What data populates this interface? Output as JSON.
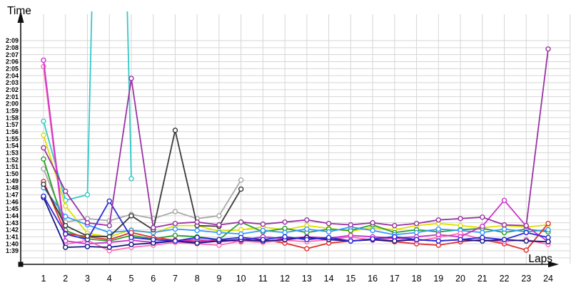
{
  "chart_data": {
    "type": "line",
    "title": "",
    "xlabel": "Laps",
    "ylabel": "Time",
    "y_axis_format": "m:ss",
    "value_unit": "seconds",
    "y_range_labels": [
      "1:39",
      "2:09"
    ],
    "grid": true,
    "legend": false,
    "x_ticks": [
      "1",
      "2",
      "3",
      "4",
      "5",
      "6",
      "7",
      "8",
      "9",
      "10",
      "11",
      "12",
      "13",
      "14",
      "15",
      "16",
      "17",
      "18",
      "19",
      "20",
      "21",
      "22",
      "23",
      "24"
    ],
    "y_ticks": [
      "2:09",
      "2:08",
      "2:07",
      "2:06",
      "2:05",
      "2:04",
      "2:03",
      "2:02",
      "2:01",
      "2:00",
      "1:59",
      "1:58",
      "1:57",
      "1:56",
      "1:55",
      "1:54",
      "1:53",
      "1:52",
      "1:51",
      "1:50",
      "1:49",
      "1:48",
      "1:47",
      "1:46",
      "1:45",
      "1:44",
      "1:43",
      "1:42",
      "1:41",
      "1:40",
      "1:39"
    ],
    "x": [
      1,
      2,
      3,
      4,
      5,
      6,
      7,
      8,
      9,
      10,
      11,
      12,
      13,
      14,
      15,
      16,
      17,
      18,
      19,
      20,
      21,
      22,
      23,
      24
    ],
    "series": [
      {
        "name": "turquoise",
        "color": "#35c8c8",
        "values": [
          117.5,
          106.2,
          107.0,
          240.0,
          109.3
        ]
      },
      {
        "name": "gray",
        "color": "#a8a8a8",
        "values": [
          110.7,
          103.1,
          103.6,
          103.3,
          104.2,
          103.6,
          104.6,
          103.6,
          104.0,
          109.1
        ]
      },
      {
        "name": "yellow",
        "color": "#dede00",
        "values": [
          115.5,
          105.4,
          101.5,
          101.0,
          102.0,
          101.5,
          102.6,
          102.6,
          101.8,
          102.0,
          102.4,
          102.0,
          102.6,
          102.2,
          101.8,
          102.3,
          102.0,
          102.6,
          102.9,
          102.6,
          102.3,
          102.6,
          102.4,
          102.7
        ]
      },
      {
        "name": "green",
        "color": "#2ca02c",
        "values": [
          112.1,
          101.9,
          100.7,
          100.4,
          101.2,
          100.7,
          101.2,
          101.0,
          100.6,
          103.1,
          101.7,
          102.2,
          101.6,
          102.1,
          101.9,
          102.7,
          101.6,
          102.0,
          101.7,
          102.0,
          102.2,
          101.6,
          102.1,
          101.7
        ]
      },
      {
        "name": "dodgerblue",
        "color": "#3399ff",
        "values": [
          108.0,
          103.9,
          102.7,
          101.6,
          101.9,
          101.6,
          102.1,
          101.9,
          101.6,
          101.4,
          101.9,
          101.6,
          102.1,
          101.7,
          102.4,
          101.9,
          101.3,
          101.6,
          102.1,
          101.9,
          101.6,
          102.1,
          101.7,
          102.0
        ]
      },
      {
        "name": "red",
        "color": "#e03030",
        "values": [
          108.9,
          101.5,
          101.0,
          100.6,
          101.6,
          100.9,
          100.5,
          100.3,
          100.6,
          100.3,
          100.6,
          100.1,
          99.3,
          100.1,
          100.4,
          100.6,
          100.3,
          100.0,
          99.8,
          100.3,
          100.6,
          100.0,
          99.1,
          102.9
        ]
      },
      {
        "name": "pink",
        "color": "#ff6eb4",
        "values": [
          125.3,
          99.9,
          100.5,
          99.0,
          99.5,
          99.8,
          100.2,
          100.0,
          99.8,
          100.4,
          100.2,
          100.5,
          100.3,
          100.6,
          101.0,
          100.5,
          100.8,
          100.4,
          100.9,
          101.5,
          100.6,
          100.3,
          100.6,
          99.9
        ]
      },
      {
        "name": "magenta",
        "color": "#cc33cc",
        "values": [
          126.2,
          100.4,
          100.0,
          100.2,
          100.5,
          100.2,
          100.4,
          100.6,
          100.3,
          100.5,
          101.0,
          100.7,
          101.0,
          100.8,
          101.2,
          101.0,
          100.8,
          101.0,
          101.3,
          101.0,
          102.5,
          106.2,
          102.5,
          100.3
        ]
      },
      {
        "name": "navy",
        "color": "#151580",
        "values": [
          106.6,
          99.5,
          99.6,
          99.5,
          99.9,
          100.1,
          100.4,
          100.1,
          100.4,
          100.6,
          100.4,
          100.6,
          100.9,
          100.6,
          100.4,
          100.6,
          100.4,
          100.6,
          100.4,
          100.6,
          100.4,
          100.6,
          100.4,
          100.3
        ]
      },
      {
        "name": "blue",
        "color": "#2a2ad4",
        "values": [
          106.8,
          101.4,
          100.6,
          106.1,
          100.9,
          100.6,
          100.4,
          100.9,
          100.6,
          100.9,
          100.6,
          101.0,
          100.6,
          100.9,
          100.4,
          100.7,
          101.0,
          100.6,
          100.4,
          100.6,
          100.9,
          100.6,
          101.6,
          100.9
        ]
      },
      {
        "name": "black",
        "color": "#3a3a3a",
        "values": [
          108.5,
          102.6,
          101.1,
          101.0,
          104.0,
          102.0,
          116.2,
          102.6,
          102.5,
          107.8
        ]
      },
      {
        "name": "purple",
        "color": "#9933a3",
        "values": [
          113.7,
          107.5,
          103.0,
          102.6,
          123.6,
          102.3,
          102.9,
          103.1,
          102.7,
          103.1,
          102.8,
          103.1,
          103.4,
          102.9,
          102.7,
          103.0,
          102.6,
          102.9,
          103.4,
          103.6,
          103.8,
          102.7,
          102.6,
          127.8
        ]
      }
    ]
  }
}
